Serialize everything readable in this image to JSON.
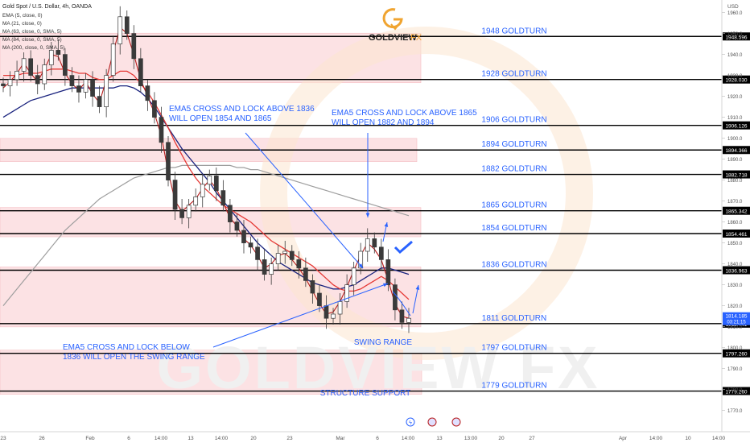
{
  "header": {
    "symbol": "Gold Spot / U.S. Dollar, 4h, OANDA",
    "indicators": [
      "EMA (5, close, 0)",
      "MA (21, close, 0)",
      "MA (63, close, 0, SMA, 5)",
      "MA (84, close, 0, SMA, 5)",
      "MA (200, close, 0, SMA, 5)"
    ]
  },
  "brand": {
    "name": "GOLDVIEW",
    "suffix": "FX",
    "watermark": "GOLDVIEW FX"
  },
  "colors": {
    "zone": "#fbd9dc",
    "zoneEdge": "#f2a9b0",
    "blue": "#2962ff",
    "red": "#e53935",
    "darkblue": "#1a237e",
    "darkred": "#b71c1c",
    "grey": "#9e9e9e",
    "up": "#26a69a",
    "candle": "#3a3a3a",
    "level": "#000000",
    "axis": "#555555",
    "annot": "#2962ff",
    "gold": "#f0a430"
  },
  "chart_data": {
    "type": "candlestick",
    "ylim": [
      1767,
      1966
    ],
    "y_axis_label": "USD",
    "x_tick_labels": [
      "23",
      "26",
      "Feb",
      "6",
      "14:00",
      "13",
      "14:00",
      "20",
      "23",
      "Mar",
      "6",
      "14:00",
      "13",
      "13:00",
      "20",
      "27",
      "Apr",
      "14:00",
      "10",
      "14:00"
    ],
    "y_tick_labels": [
      1960,
      1950,
      1940,
      1930,
      1920,
      1910,
      1900,
      1890,
      1880,
      1870,
      1860,
      1850,
      1840,
      1830,
      1820,
      1810,
      1800,
      1790,
      1780,
      1770
    ],
    "levels": [
      {
        "value": 1948.596,
        "label": "1948 GOLDTURN",
        "price_tag": "1948.596"
      },
      {
        "value": 1928.03,
        "label": "1928 GOLDTURN",
        "price_tag": "1928.030"
      },
      {
        "value": 1906.126,
        "label": "1906 GOLDTURN",
        "price_tag": "1906.126"
      },
      {
        "value": 1894.366,
        "label": "1894 GOLDTURN",
        "price_tag": "1894.366"
      },
      {
        "value": 1882.718,
        "label": "1882 GOLDTURN",
        "price_tag": "1882.718"
      },
      {
        "value": 1865.342,
        "label": "1865 GOLDTURN",
        "price_tag": "1865.342"
      },
      {
        "value": 1854.461,
        "label": "1854 GOLDTURN",
        "price_tag": "1854.461"
      },
      {
        "value": 1836.963,
        "label": "1836 GOLDTURN",
        "price_tag": "1836.963"
      },
      {
        "value": 1811.441,
        "label": "1811 GOLDTURN",
        "price_tag": "1811.441"
      },
      {
        "value": 1797.26,
        "label": "1797 GOLDTURN",
        "price_tag": "1797.260"
      },
      {
        "value": 1779.26,
        "label": "1779 GOLDTURN",
        "price_tag": "1779.260"
      }
    ],
    "current_price": {
      "value": 1814.185,
      "label": "1814.185",
      "countdown": "03:21:15"
    },
    "close_series": [
      1925,
      1928,
      1932,
      1938,
      1930,
      1926,
      1935,
      1942,
      1940,
      1930,
      1925,
      1922,
      1928,
      1920,
      1915,
      1930,
      1945,
      1958,
      1950,
      1938,
      1925,
      1918,
      1910,
      1898,
      1880,
      1866,
      1862,
      1868,
      1872,
      1878,
      1882,
      1875,
      1868,
      1860,
      1856,
      1850,
      1848,
      1842,
      1835,
      1840,
      1845,
      1846,
      1842,
      1838,
      1832,
      1826,
      1820,
      1814,
      1816,
      1822,
      1830,
      1838,
      1846,
      1852,
      1848,
      1842,
      1830,
      1818,
      1812,
      1814
    ],
    "moving_averages": {
      "ema5": [
        1924,
        1927,
        1931,
        1936,
        1931,
        1927,
        1933,
        1940,
        1939,
        1931,
        1926,
        1923,
        1927,
        1921,
        1917,
        1928,
        1941,
        1953,
        1950,
        1940,
        1928,
        1920,
        1912,
        1901,
        1884,
        1870,
        1865,
        1868,
        1871,
        1876,
        1880,
        1876,
        1869,
        1862,
        1858,
        1852,
        1849,
        1844,
        1838,
        1840,
        1844,
        1845,
        1842,
        1838,
        1833,
        1827,
        1821,
        1816,
        1817,
        1822,
        1829,
        1837,
        1844,
        1850,
        1847,
        1842,
        1832,
        1821,
        1815,
        1814
      ],
      "ma21": [
        1930,
        1930,
        1930,
        1931,
        1931,
        1931,
        1932,
        1933,
        1933,
        1933,
        1932,
        1931,
        1931,
        1929,
        1928,
        1928,
        1930,
        1932,
        1932,
        1930,
        1926,
        1922,
        1917,
        1911,
        1905,
        1898,
        1892,
        1886,
        1881,
        1877,
        1874,
        1871,
        1868,
        1866,
        1864,
        1862,
        1860,
        1857,
        1854,
        1851,
        1849,
        1847,
        1845,
        1843,
        1841,
        1839,
        1836,
        1833,
        1830,
        1828,
        1827,
        1827,
        1828,
        1830,
        1832,
        1834,
        1832,
        1829,
        1826,
        1823
      ],
      "ma63": [
        1910,
        1912,
        1914,
        1916,
        1918,
        1919,
        1920,
        1921,
        1922,
        1923,
        1924,
        1924,
        1924,
        1924,
        1924,
        1924,
        1924,
        1925,
        1925,
        1924,
        1922,
        1919,
        1915,
        1910,
        1905,
        1900,
        1895,
        1891,
        1887,
        1883,
        1879,
        1874,
        1870,
        1866,
        1862,
        1858,
        1854,
        1850,
        1847,
        1844,
        1841,
        1839,
        1837,
        1835,
        1833,
        1831,
        1830,
        1829,
        1828,
        1828,
        1829,
        1830,
        1832,
        1834,
        1836,
        1838,
        1838,
        1837,
        1836,
        1835
      ],
      "ma200": [
        1820,
        1824,
        1828,
        1832,
        1836,
        1840,
        1844,
        1848,
        1852,
        1856,
        1859,
        1862,
        1865,
        1868,
        1871,
        1873,
        1875,
        1877,
        1879,
        1881,
        1882,
        1883,
        1884,
        1885,
        1886,
        1886,
        1887,
        1887,
        1887,
        1887,
        1887,
        1887,
        1887,
        1887,
        1886,
        1886,
        1885,
        1885,
        1884,
        1883,
        1882,
        1881,
        1880,
        1879,
        1878,
        1877,
        1876,
        1875,
        1874,
        1873,
        1872,
        1871,
        1870,
        1869,
        1868,
        1867,
        1866,
        1865,
        1864,
        1863
      ]
    },
    "annotations": [
      {
        "id": "a1",
        "lines": [
          "EMA5 CROSS AND LOCK ABOVE 1836",
          "WILL OPEN  1854 AND 1865"
        ]
      },
      {
        "id": "a2",
        "lines": [
          "EMA5 CROSS AND LOCK ABOVE 1865",
          "WILL OPEN  1882 AND 1894"
        ]
      },
      {
        "id": "a3",
        "lines": [
          "EMA5 CROSS AND LOCK BELOW",
          "1836 WILL OPEN THE SWING RANGE"
        ]
      },
      {
        "id": "a4",
        "lines": [
          "SWING RANGE"
        ]
      },
      {
        "id": "a5",
        "lines": [
          "STRUCTURE SUPPORT"
        ]
      }
    ]
  }
}
